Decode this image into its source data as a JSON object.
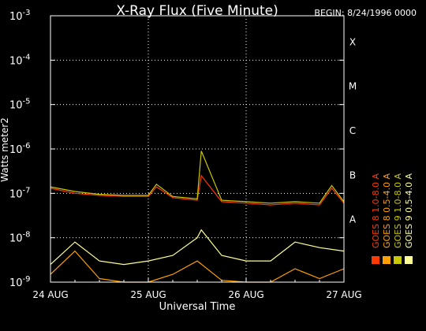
{
  "chart_data": {
    "type": "line",
    "title": "X-Ray Flux (Five Minute)",
    "begin_label": "BEGIN: 8/24/1996 0000",
    "ylabel": "Watts meter2",
    "xlabel": "Universal Time",
    "y_scale": "log",
    "ylim": [
      1e-09,
      0.001
    ],
    "xlim": [
      "1996-08-24 00:00",
      "1996-08-27 00:00"
    ],
    "y_ticks": [
      {
        "exp": "-9",
        "value": 1e-09
      },
      {
        "exp": "-8",
        "value": 1e-08
      },
      {
        "exp": "-7",
        "value": 1e-07
      },
      {
        "exp": "-6",
        "value": 1e-06
      },
      {
        "exp": "-5",
        "value": 1e-05
      },
      {
        "exp": "-4",
        "value": 0.0001
      },
      {
        "exp": "-3",
        "value": 0.001
      }
    ],
    "y_tick_base": "10",
    "x_ticks": [
      "24 AUG",
      "25 AUG",
      "26 AUG",
      "27 AUG"
    ],
    "flare_classes": [
      {
        "label": "A",
        "value": 1e-08
      },
      {
        "label": "B",
        "value": 1e-07
      },
      {
        "label": "C",
        "value": 1e-06
      },
      {
        "label": "M",
        "value": 1e-05
      },
      {
        "label": "X",
        "value": 0.0001
      }
    ],
    "grid": true,
    "legend_position": "right",
    "series": [
      {
        "name": "GOES 8 1.0-8.0 A",
        "color": "#ff3a00",
        "x": [
          "1996-08-24 00:00",
          "1996-08-24 06:00",
          "1996-08-24 12:00",
          "1996-08-24 18:00",
          "1996-08-25 00:00",
          "1996-08-25 02:00",
          "1996-08-25 06:00",
          "1996-08-25 12:00",
          "1996-08-25 13:00",
          "1996-08-25 18:00",
          "1996-08-26 00:00",
          "1996-08-26 06:00",
          "1996-08-26 12:00",
          "1996-08-26 18:00",
          "1996-08-26 21:00",
          "1996-08-27 00:00"
        ],
        "y": [
          1.3e-07,
          1e-07,
          9e-08,
          8.5e-08,
          8.5e-08,
          1.4e-07,
          8e-08,
          7e-08,
          2.5e-07,
          6.5e-08,
          6e-08,
          5.5e-08,
          6e-08,
          5.5e-08,
          1.3e-07,
          6e-08
        ]
      },
      {
        "name": "GOES 8 0.5-4.0 A",
        "color": "#ffa000",
        "x": [
          "1996-08-24 00:00",
          "1996-08-24 06:00",
          "1996-08-24 12:00",
          "1996-08-24 18:00",
          "1996-08-25 00:00",
          "1996-08-25 06:00",
          "1996-08-25 12:00",
          "1996-08-25 18:00",
          "1996-08-26 00:00",
          "1996-08-26 06:00",
          "1996-08-26 12:00",
          "1996-08-26 18:00",
          "1996-08-27 00:00"
        ],
        "y": [
          1.5e-09,
          5e-09,
          1.2e-09,
          1e-09,
          1e-09,
          1.5e-09,
          3e-09,
          1.1e-09,
          1e-09,
          1e-09,
          2e-09,
          1.2e-09,
          2e-09
        ]
      },
      {
        "name": "GOES 9 1.0-8.0 A",
        "color": "#c8c800",
        "x": [
          "1996-08-24 00:00",
          "1996-08-24 06:00",
          "1996-08-24 12:00",
          "1996-08-24 18:00",
          "1996-08-25 00:00",
          "1996-08-25 02:00",
          "1996-08-25 06:00",
          "1996-08-25 12:00",
          "1996-08-25 13:00",
          "1996-08-25 18:00",
          "1996-08-26 00:00",
          "1996-08-26 06:00",
          "1996-08-26 12:00",
          "1996-08-26 18:00",
          "1996-08-26 21:00",
          "1996-08-27 00:00"
        ],
        "y": [
          1.4e-07,
          1.1e-07,
          9.5e-08,
          9e-08,
          9e-08,
          1.6e-07,
          8.5e-08,
          7.5e-08,
          9e-07,
          7e-08,
          6.5e-08,
          6e-08,
          6.5e-08,
          6e-08,
          1.5e-07,
          6.5e-08
        ]
      },
      {
        "name": "GOES 9 0.5-4.0 A",
        "color": "#ffff96",
        "x": [
          "1996-08-24 00:00",
          "1996-08-24 06:00",
          "1996-08-24 12:00",
          "1996-08-24 18:00",
          "1996-08-25 00:00",
          "1996-08-25 06:00",
          "1996-08-25 12:00",
          "1996-08-25 13:00",
          "1996-08-25 18:00",
          "1996-08-26 00:00",
          "1996-08-26 06:00",
          "1996-08-26 12:00",
          "1996-08-26 18:00",
          "1996-08-27 00:00"
        ],
        "y": [
          2.5e-09,
          8e-09,
          3e-09,
          2.5e-09,
          3e-09,
          4e-09,
          1e-08,
          1.5e-08,
          4e-09,
          3e-09,
          3e-09,
          8e-09,
          6e-09,
          5e-09
        ]
      }
    ]
  }
}
